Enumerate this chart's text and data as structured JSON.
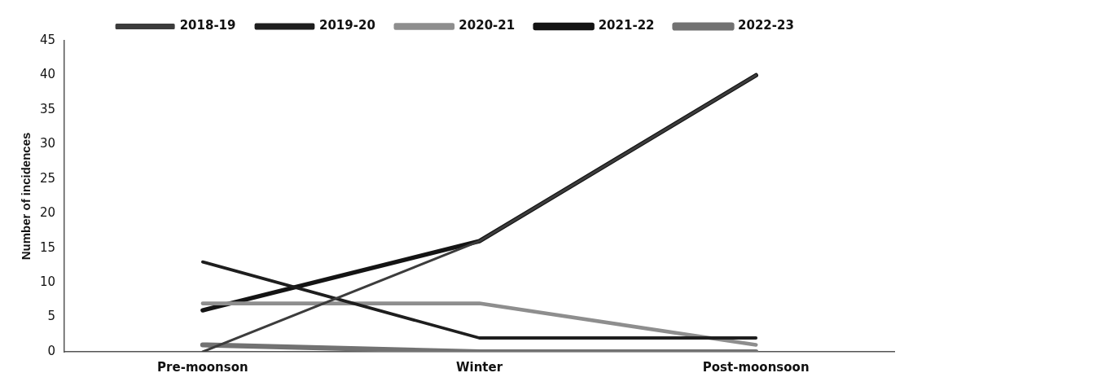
{
  "chart_data": {
    "type": "line",
    "ylabel": "Number of incidences",
    "categories": [
      "Pre-moonson",
      "Winter",
      "Post-moonsoon"
    ],
    "series": [
      {
        "name": "2018-19",
        "color": "#3c3c3c",
        "values": [
          0,
          16,
          40
        ]
      },
      {
        "name": "2019-20",
        "color": "#1e1e1e",
        "values": [
          13,
          2,
          2
        ]
      },
      {
        "name": "2020-21",
        "color": "#8e8e8e",
        "values": [
          7,
          7,
          1
        ]
      },
      {
        "name": "2021-22",
        "color": "#141414",
        "values": [
          6,
          16,
          40
        ]
      },
      {
        "name": "2022-23",
        "color": "#727272",
        "values": [
          1,
          0,
          0
        ]
      }
    ],
    "ylim": [
      0,
      45
    ],
    "yticks": [
      0,
      5,
      10,
      15,
      20,
      25,
      30,
      35,
      40,
      45
    ],
    "grid": false,
    "legend": "top",
    "marker": "none",
    "line_style": "solid"
  }
}
